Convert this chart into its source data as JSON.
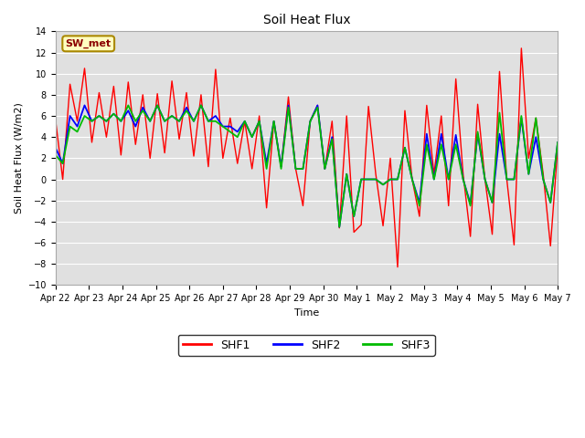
{
  "title": "Soil Heat Flux",
  "ylabel": "Soil Heat Flux (W/m2)",
  "xlabel": "Time",
  "ylim": [
    -10,
    14
  ],
  "yticks": [
    -10,
    -8,
    -6,
    -4,
    -2,
    0,
    2,
    4,
    6,
    8,
    10,
    12,
    14
  ],
  "background_color": "#ffffff",
  "plot_bg_color": "#e0e0e0",
  "grid_color": "#ffffff",
  "legend_label": "SW_met",
  "legend_text_color": "#8b0000",
  "legend_box_color": "#ffffc0",
  "line_colors": {
    "SHF1": "#ff0000",
    "SHF2": "#0000ff",
    "SHF3": "#00bb00"
  },
  "xtick_labels": [
    "Apr 22",
    "Apr 23",
    "Apr 24",
    "Apr 25",
    "Apr 26",
    "Apr 27",
    "Apr 28",
    "Apr 29",
    "Apr 30",
    "May 1",
    "May 2",
    "May 3",
    "May 4",
    "May 5",
    "May 6",
    "May 7"
  ],
  "SHF1": [
    5.7,
    0.0,
    9.0,
    5.5,
    10.5,
    3.5,
    8.2,
    4.0,
    8.8,
    2.3,
    9.2,
    3.3,
    8.0,
    2.0,
    8.1,
    2.5,
    9.3,
    3.8,
    8.2,
    2.2,
    8.0,
    1.2,
    10.4,
    2.0,
    5.8,
    1.5,
    5.5,
    1.0,
    6.0,
    -2.7,
    5.5,
    1.2,
    7.8,
    1.0,
    -2.5,
    5.5,
    7.0,
    1.0,
    5.5,
    -4.6,
    6.0,
    -5.0,
    -4.3,
    6.9,
    0.5,
    -4.4,
    2.0,
    -8.3,
    6.5,
    0.0,
    -3.5,
    7.0,
    0.5,
    6.0,
    -2.5,
    9.5,
    0.5,
    -5.4,
    7.1,
    0.0,
    -5.2,
    10.2,
    0.0,
    -6.2,
    12.4,
    2.0,
    5.8,
    0.5,
    -6.3,
    3.0
  ],
  "SHF2": [
    3.0,
    1.5,
    6.0,
    5.0,
    7.0,
    5.5,
    6.0,
    5.5,
    6.2,
    5.5,
    6.5,
    5.0,
    6.8,
    5.5,
    7.0,
    5.5,
    6.0,
    5.5,
    6.8,
    5.5,
    7.0,
    5.5,
    6.0,
    5.0,
    5.0,
    4.5,
    5.5,
    4.0,
    5.5,
    1.5,
    5.5,
    1.2,
    7.0,
    1.0,
    1.0,
    5.5,
    7.0,
    1.0,
    4.0,
    -4.5,
    0.5,
    -3.5,
    0.0,
    0.0,
    0.0,
    -0.5,
    0.0,
    0.0,
    3.0,
    0.0,
    -2.2,
    4.3,
    0.0,
    4.3,
    0.0,
    4.2,
    0.0,
    -2.3,
    4.3,
    0.0,
    -2.2,
    4.3,
    0.0,
    0.0,
    5.8,
    0.5,
    4.0,
    0.0,
    -2.2,
    3.5
  ],
  "SHF3": [
    2.3,
    1.5,
    5.0,
    4.5,
    6.0,
    5.5,
    6.0,
    5.5,
    6.2,
    5.5,
    7.0,
    5.5,
    6.5,
    5.5,
    7.0,
    5.5,
    6.0,
    5.5,
    6.5,
    5.5,
    7.0,
    5.5,
    5.5,
    5.0,
    4.5,
    4.0,
    5.5,
    4.0,
    5.5,
    1.0,
    5.5,
    1.0,
    6.8,
    1.0,
    1.0,
    5.5,
    6.8,
    1.0,
    3.8,
    -4.5,
    0.5,
    -3.5,
    0.0,
    0.0,
    0.0,
    -0.5,
    0.0,
    0.0,
    3.0,
    0.0,
    -2.5,
    3.3,
    0.0,
    3.3,
    0.0,
    3.3,
    0.0,
    -2.5,
    4.5,
    0.0,
    -2.2,
    6.3,
    0.0,
    0.0,
    6.0,
    0.5,
    5.8,
    0.0,
    -2.2,
    3.5
  ]
}
